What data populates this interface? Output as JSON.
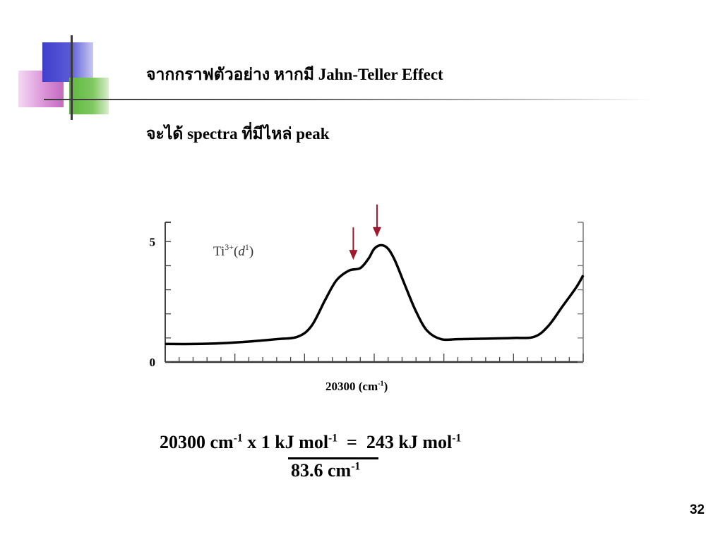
{
  "slide": {
    "title_line1": "จากกราฟตัวอย่าง หากมี Jahn-Teller Effect",
    "title_line2": "จะได้ spectra ที่มีไหล่ peak",
    "page_number": "32"
  },
  "equation": {
    "left_value": "20300 cm",
    "left_exp": "-1",
    "times": " x ",
    "numerator": "1 kJ mol",
    "numerator_exp": "-1",
    "equals": "  =  ",
    "result": "243 kJ mol",
    "result_exp": "-1",
    "denominator": "83.6 cm",
    "denominator_exp": "-1"
  },
  "chart_data": {
    "type": "line",
    "title": "",
    "annotation": {
      "text": "Ti",
      "sup1": "3+",
      "paren_open": "(",
      "d": "d",
      "sup2": "1",
      "paren_close": ")"
    },
    "xlabel": "20300 (cm",
    "xlabel_exp": "-1",
    "xlabel_close": ")",
    "ylabel": "",
    "y_ticks": [
      {
        "value": 0,
        "label": "0"
      },
      {
        "value": 5,
        "label": "5"
      }
    ],
    "ylim": [
      0,
      5.8
    ],
    "xlim": [
      0,
      30
    ],
    "x": [
      0,
      2,
      4,
      6,
      8,
      9.5,
      10.5,
      11.5,
      12.3,
      13.2,
      14,
      14.6,
      15,
      15.5,
      16,
      16.5,
      17.2,
      18,
      18.8,
      19.8,
      21,
      23,
      25,
      26.5,
      27.5,
      28.5,
      29.5,
      30
    ],
    "y": [
      0.75,
      0.75,
      0.78,
      0.85,
      0.95,
      1.05,
      1.5,
      2.6,
      3.4,
      3.8,
      3.9,
      4.3,
      4.7,
      4.85,
      4.7,
      4.2,
      3.2,
      2.1,
      1.3,
      0.95,
      0.95,
      0.97,
      1.0,
      1.05,
      1.5,
      2.3,
      3.1,
      3.6
    ],
    "arrows": [
      {
        "x": 13.5,
        "y": 3.95,
        "color": "#a0182d"
      },
      {
        "x": 15.2,
        "y": 4.9,
        "color": "#a0182d"
      }
    ],
    "line_color": "#000000",
    "grid": false
  }
}
